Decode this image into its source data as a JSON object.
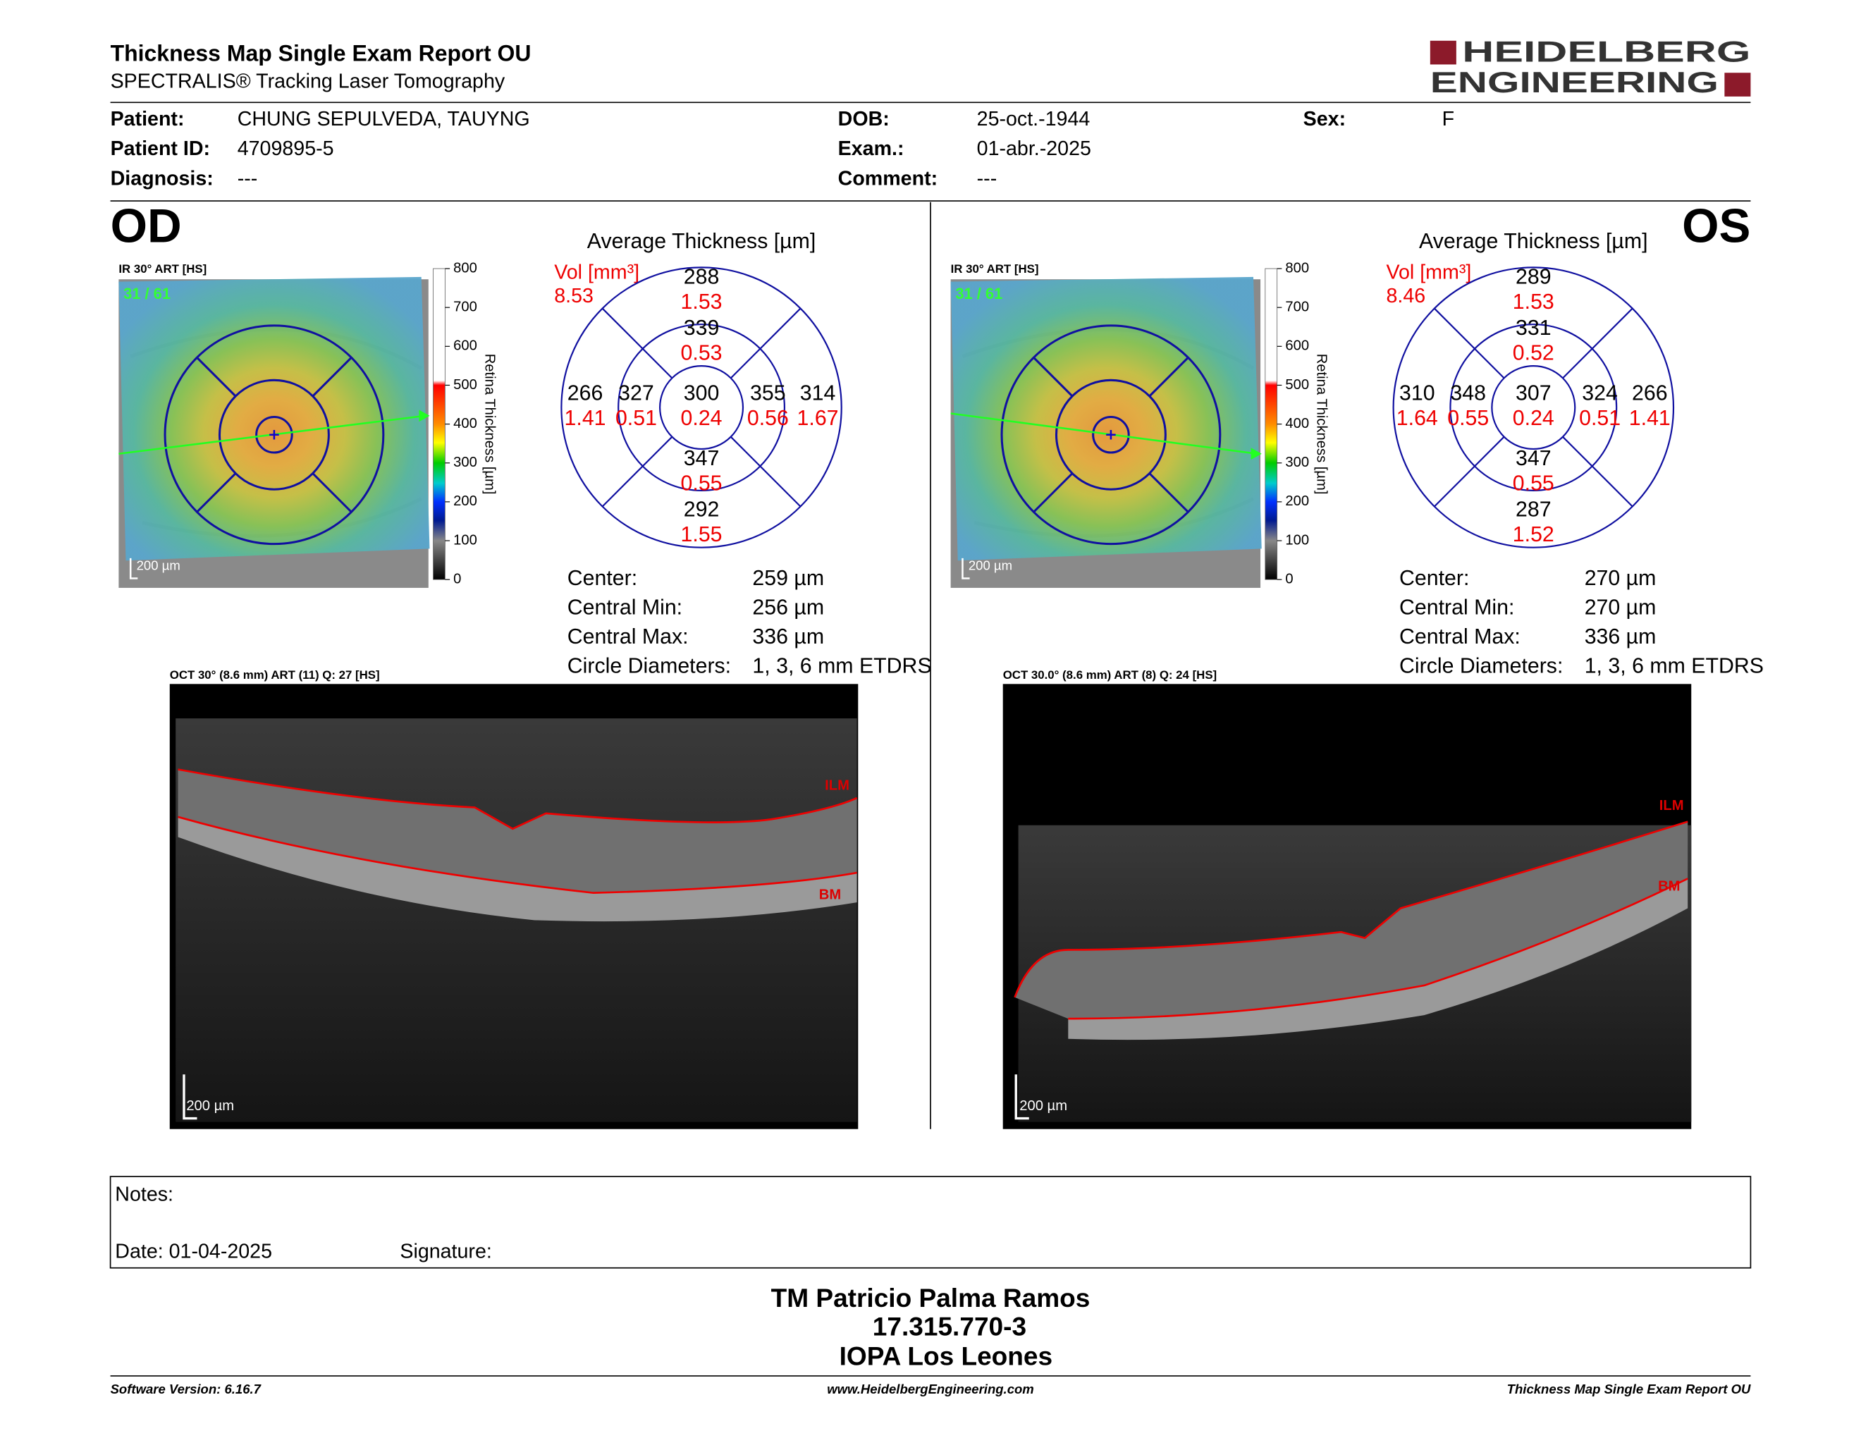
{
  "header": {
    "title": "Thickness Map Single Exam Report OU",
    "subtitle": "SPECTRALIS® Tracking Laser Tomography",
    "logo": [
      "HEIDELBERG",
      "ENGINEERING"
    ]
  },
  "patient": [
    {
      "label": "Patient:",
      "value": "CHUNG SEPULVEDA, TAUYNG"
    },
    {
      "label": "Patient ID:",
      "value": "4709895-5"
    },
    {
      "label": "Diagnosis:",
      "value": "---"
    },
    {
      "label": "DOB:",
      "value": "25-oct.-1944"
    },
    {
      "label": "Exam.:",
      "value": "01-abr.-2025"
    },
    {
      "label": "Comment:",
      "value": "---"
    },
    {
      "label": "Sex:",
      "value": "F"
    }
  ],
  "eyes": [
    {
      "eye": "OD",
      "ir_label": "IR 30° ART [HS]",
      "frame": "31 / 61",
      "scale_bar": "200 µm",
      "colorbar_title": "Retina Thickness [µm]",
      "colorbar_ticks": [
        800,
        700,
        600,
        500,
        400,
        300,
        200,
        100,
        0
      ],
      "avg_title": "Average Thickness [µm]",
      "vol_label": "Vol [mm³]",
      "total_volume": 8.53,
      "sectors": [
        {
          "thickness": 288,
          "volume": 1.53
        },
        {
          "thickness": 339,
          "volume": 0.53
        },
        {
          "thickness": 300,
          "volume": 0.24
        },
        {
          "thickness": 266,
          "volume": 1.41
        },
        {
          "thickness": 327,
          "volume": 0.51
        },
        {
          "thickness": 355,
          "volume": 0.56
        },
        {
          "thickness": 314,
          "volume": 1.67
        },
        {
          "thickness": 347,
          "volume": 0.55
        },
        {
          "thickness": 292,
          "volume": 1.55
        }
      ],
      "stats": [
        {
          "label": "Center:",
          "value": "259 µm"
        },
        {
          "label": "Central Min:",
          "value": "256 µm"
        },
        {
          "label": "Central Max:",
          "value": "336 µm"
        },
        {
          "label": "Circle Diameters:",
          "value": "1, 3, 6 mm ETDRS"
        }
      ],
      "oct_label": "OCT 30° (8.6 mm) ART (11) Q: 27 [HS]",
      "ilm": "ILM",
      "bm": "BM",
      "oct_scale_bar": "200 µm"
    },
    {
      "eye": "OS",
      "ir_label": "IR 30° ART [HS]",
      "frame": "31 / 61",
      "scale_bar": "200 µm",
      "colorbar_title": "Retina Thickness [µm]",
      "colorbar_ticks": [
        800,
        700,
        600,
        500,
        400,
        300,
        200,
        100,
        0
      ],
      "avg_title": "Average Thickness [µm]",
      "vol_label": "Vol [mm³]",
      "total_volume": 8.46,
      "sectors": [
        {
          "thickness": 289,
          "volume": 1.53
        },
        {
          "thickness": 331,
          "volume": 0.52
        },
        {
          "thickness": 307,
          "volume": 0.24
        },
        {
          "thickness": 310,
          "volume": 1.64
        },
        {
          "thickness": 348,
          "volume": 0.55
        },
        {
          "thickness": 324,
          "volume": 0.51
        },
        {
          "thickness": 266,
          "volume": 1.41
        },
        {
          "thickness": 347,
          "volume": 0.55
        },
        {
          "thickness": 287,
          "volume": 1.52
        }
      ],
      "stats": [
        {
          "label": "Center:",
          "value": "270 µm"
        },
        {
          "label": "Central Min:",
          "value": "270 µm"
        },
        {
          "label": "Central Max:",
          "value": "336 µm"
        },
        {
          "label": "Circle Diameters:",
          "value": "1, 3, 6 mm ETDRS"
        }
      ],
      "oct_label": "OCT 30.0° (8.6 mm) ART (8) Q: 24 [HS]",
      "ilm": "ILM",
      "bm": "BM",
      "oct_scale_bar": "200 µm"
    }
  ],
  "notes": {
    "label": "Notes:",
    "date": "Date: 01-04-2025",
    "signature": "Signature:"
  },
  "signer": [
    "TM Patricio Palma Ramos",
    "17.315.770-3",
    "IOPA Los Leones"
  ],
  "footer": {
    "left": "Software Version: 6.16.7",
    "center": "www.HeidelbergEngineering.com",
    "right": "Thickness Map Single Exam Report OU"
  }
}
